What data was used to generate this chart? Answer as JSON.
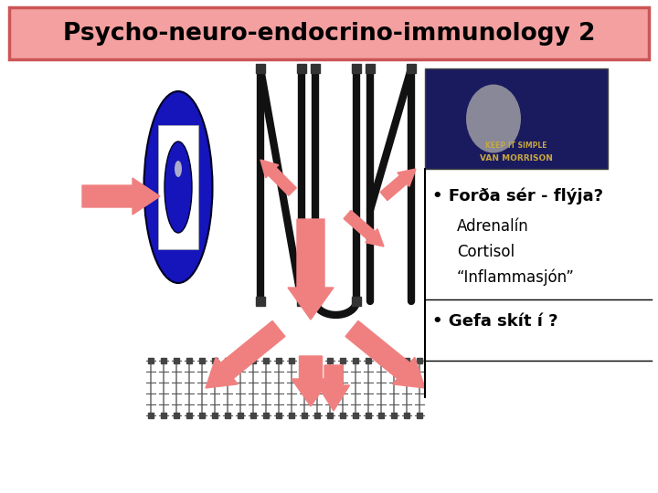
{
  "title": "Psycho-neuro-endocrino-immunology 2",
  "title_bg": "#f4a0a0",
  "title_border": "#cc5555",
  "title_fg": "#000000",
  "bg_color": "#ffffff",
  "bullet1": "• Forða sér - flýja?",
  "sub1a": "Adrenalín",
  "sub1b": "Cortisol",
  "sub1c": "“Inflammasjón”",
  "bullet2": "• Gefa skít í ?",
  "arrow_color": "#f08080",
  "nerve_color": "#111111",
  "text_box_border": "#000000",
  "vm_bg": "#1a1a5e",
  "vm_text": "#c8a840"
}
